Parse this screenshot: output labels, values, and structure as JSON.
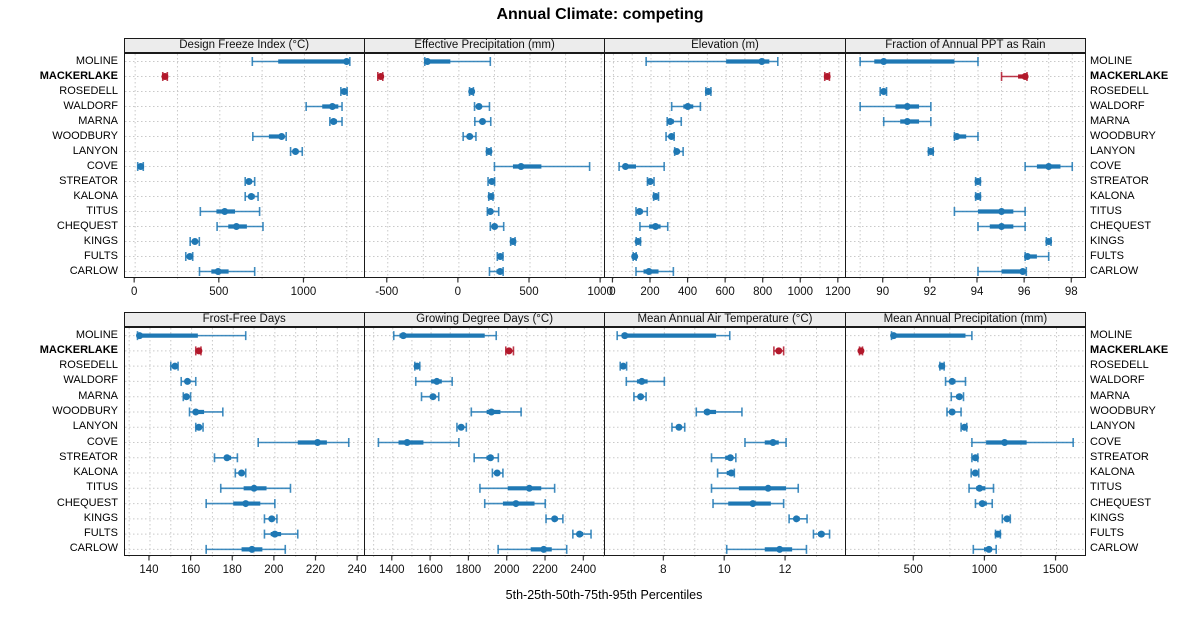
{
  "title": "Annual Climate: competing",
  "caption": "5th-25th-50th-75th-95th Percentiles",
  "percentile_labels": [
    "5th",
    "25th",
    "50th",
    "75th",
    "95th"
  ],
  "colors": {
    "series": "#1f78b4",
    "highlight": "#b2182b",
    "strip_bg": "#ececec",
    "grid": "#c9c9c9",
    "border": "#1a1a1a",
    "tick": "#333333",
    "text": "#000000"
  },
  "rows": [
    "MOLINE",
    "MACKERLAKE",
    "ROSEDELL",
    "WALDORF",
    "MARNA",
    "WOODBURY",
    "LANYON",
    "COVE",
    "STREATOR",
    "KALONA",
    "TITUS",
    "CHEQUEST",
    "KINGS",
    "FULTS",
    "CARLOW"
  ],
  "highlight_row": "MACKERLAKE",
  "chart_data": [
    {
      "type": "dotplot-percentiles",
      "panel_title": "Design Freeze Index (°C)",
      "xlim": [
        -60,
        1360
      ],
      "ticks": [
        0,
        500,
        1000
      ],
      "grid_step": 250,
      "percentiles": [
        [
          692,
          845,
          1249,
          1261,
          1268
        ],
        [
          163,
          171,
          176,
          183,
          190
        ],
        [
          1215,
          1228,
          1235,
          1243,
          1252
        ],
        [
          1010,
          1105,
          1165,
          1200,
          1222
        ],
        [
          1150,
          1162,
          1172,
          1192,
          1222
        ],
        [
          695,
          790,
          865,
          880,
          892
        ],
        [
          918,
          936,
          947,
          965,
          987
        ],
        [
          15,
          26,
          33,
          41,
          48
        ],
        [
          650,
          664,
          672,
          690,
          706
        ],
        [
          650,
          670,
          686,
          706,
          726
        ],
        [
          385,
          480,
          529,
          590,
          735
        ],
        [
          484,
          550,
          598,
          660,
          755
        ],
        [
          325,
          344,
          353,
          366,
          379
        ],
        [
          299,
          314,
          323,
          331,
          340
        ],
        [
          380,
          450,
          490,
          552,
          706
        ]
      ]
    },
    {
      "type": "dotplot-percentiles",
      "panel_title": "Effective Precipitation (mm)",
      "xlim": [
        -660,
        1030
      ],
      "ticks": [
        -500,
        0,
        500,
        1000
      ],
      "grid_step": 250,
      "percentiles": [
        [
          -240,
          -232,
          -221,
          -60,
          221
        ],
        [
          -570,
          -556,
          -549,
          -544,
          -535
        ],
        [
          75,
          84,
          90,
          96,
          102
        ],
        [
          110,
          130,
          141,
          160,
          215
        ],
        [
          112,
          150,
          166,
          181,
          224
        ],
        [
          30,
          60,
          76,
          91,
          120
        ],
        [
          195,
          205,
          212,
          218,
          226
        ],
        [
          250,
          380,
          437,
          580,
          919
        ],
        [
          205,
          221,
          232,
          241,
          251
        ],
        [
          210,
          220,
          226,
          231,
          240
        ],
        [
          200,
          212,
          221,
          236,
          280
        ],
        [
          221,
          240,
          251,
          270,
          315
        ],
        [
          364,
          374,
          381,
          386,
          395
        ],
        [
          270,
          283,
          291,
          297,
          310
        ],
        [
          215,
          264,
          290,
          300,
          311
        ]
      ]
    },
    {
      "type": "dotplot-percentiles",
      "panel_title": "Elevation (m)",
      "xlim": [
        -45,
        1235
      ],
      "ticks": [
        0,
        200,
        400,
        600,
        800,
        1000,
        1200
      ],
      "grid_step": 100,
      "percentiles": [
        [
          174,
          600,
          790,
          830,
          875
        ],
        [
          1125,
          1133,
          1138,
          1143,
          1150
        ],
        [
          492,
          500,
          505,
          511,
          519
        ],
        [
          310,
          372,
          396,
          425,
          463
        ],
        [
          286,
          296,
          302,
          322,
          361
        ],
        [
          280,
          296,
          309,
          316,
          323
        ],
        [
          326,
          331,
          337,
          351,
          371
        ],
        [
          30,
          50,
          64,
          120,
          270
        ],
        [
          181,
          190,
          196,
          206,
          216
        ],
        [
          214,
          220,
          225,
          231,
          240
        ],
        [
          120,
          130,
          139,
          156,
          180
        ],
        [
          141,
          190,
          224,
          251,
          289
        ],
        [
          121,
          126,
          131,
          136,
          144
        ],
        [
          105,
          109,
          113,
          116,
          121
        ],
        [
          120,
          160,
          189,
          240,
          319
        ]
      ]
    },
    {
      "type": "dotplot-percentiles",
      "panel_title": "Fraction of Annual PPT as Rain",
      "xlim": [
        88.4,
        98.6
      ],
      "ticks": [
        90,
        92,
        94,
        96,
        98
      ],
      "grid_step": 1,
      "percentiles": [
        [
          89,
          89.6,
          90,
          93,
          94
        ],
        [
          95,
          95.7,
          96,
          96.02,
          96.08
        ],
        [
          89.85,
          89.92,
          90,
          90.05,
          90.12
        ],
        [
          89,
          90.5,
          91,
          91.5,
          92
        ],
        [
          90,
          90.7,
          91,
          91.5,
          92
        ],
        [
          93,
          93.02,
          93.1,
          93.5,
          94
        ],
        [
          91.9,
          91.95,
          92,
          92.05,
          92.1
        ],
        [
          96,
          96.5,
          97,
          97.5,
          98
        ],
        [
          93.9,
          93.95,
          94,
          94.05,
          94.1
        ],
        [
          93.9,
          93.95,
          94,
          94.05,
          94.1
        ],
        [
          93,
          94,
          95,
          95.5,
          96
        ],
        [
          94,
          94.5,
          95,
          95.5,
          96
        ],
        [
          96.9,
          96.95,
          97,
          97.05,
          97.1
        ],
        [
          96,
          96.02,
          96.1,
          96.5,
          97
        ],
        [
          94,
          95,
          95.9,
          96,
          96.05
        ]
      ]
    },
    {
      "type": "dotplot-percentiles",
      "panel_title": "Frost-Free Days",
      "xlim": [
        128,
        243.5
      ],
      "ticks": [
        140,
        160,
        180,
        200,
        220,
        240
      ],
      "grid_step": 10,
      "percentiles": [
        [
          134,
          134.5,
          135,
          163,
          186
        ],
        [
          162,
          163,
          163.5,
          164,
          164.5
        ],
        [
          150,
          151,
          152,
          152.5,
          153.5
        ],
        [
          155,
          157,
          158,
          159.5,
          162
        ],
        [
          156,
          157,
          157.5,
          158.2,
          159.5
        ],
        [
          159,
          161,
          162,
          166,
          175
        ],
        [
          162,
          163,
          163.5,
          164.2,
          165.5
        ],
        [
          192,
          211,
          220.5,
          225,
          235.5
        ],
        [
          171,
          176,
          177,
          179,
          182
        ],
        [
          181,
          183,
          184,
          185,
          186
        ],
        [
          174,
          185,
          190,
          196,
          207.5
        ],
        [
          167,
          180,
          186,
          193,
          200
        ],
        [
          195,
          197.5,
          198.5,
          199.5,
          201
        ],
        [
          195,
          198,
          200,
          203,
          211
        ],
        [
          167,
          184,
          189,
          194,
          205
        ]
      ]
    },
    {
      "type": "dotplot-percentiles",
      "panel_title": "Growing Degree Days (°C)",
      "xlim": [
        1255,
        2510
      ],
      "ticks": [
        1400,
        1600,
        1800,
        2000,
        2200,
        2400
      ],
      "grid_step": 100,
      "percentiles": [
        [
          1405,
          1435,
          1455,
          1880,
          1940
        ],
        [
          1990,
          2000,
          2007,
          2016,
          2030
        ],
        [
          1515,
          1521,
          1527,
          1533,
          1541
        ],
        [
          1520,
          1600,
          1630,
          1656,
          1710
        ],
        [
          1550,
          1594,
          1610,
          1621,
          1640
        ],
        [
          1810,
          1890,
          1915,
          1962,
          2070
        ],
        [
          1735,
          1749,
          1757,
          1766,
          1784
        ],
        [
          1325,
          1430,
          1475,
          1560,
          1745
        ],
        [
          1825,
          1889,
          1910,
          1926,
          1951
        ],
        [
          1920,
          1936,
          1945,
          1956,
          1975
        ],
        [
          1855,
          2000,
          2113,
          2175,
          2245
        ],
        [
          1880,
          1975,
          2043,
          2140,
          2196
        ],
        [
          2200,
          2231,
          2245,
          2261,
          2288
        ],
        [
          2340,
          2364,
          2375,
          2394,
          2435
        ],
        [
          1950,
          2120,
          2188,
          2230,
          2308
        ]
      ]
    },
    {
      "type": "dotplot-percentiles",
      "panel_title": "Mean Annual Air Temperature (°C)",
      "xlim": [
        6.05,
        13.95
      ],
      "ticks": [
        8,
        10,
        12
      ],
      "grid_step": 1,
      "percentiles": [
        [
          6.45,
          6.6,
          6.7,
          9.7,
          10.15
        ],
        [
          11.6,
          11.7,
          11.76,
          11.84,
          11.92
        ],
        [
          6.55,
          6.6,
          6.65,
          6.7,
          6.76
        ],
        [
          6.75,
          7.1,
          7.26,
          7.45,
          8.0
        ],
        [
          7.0,
          7.15,
          7.22,
          7.3,
          7.4
        ],
        [
          9.05,
          9.3,
          9.41,
          9.7,
          10.55
        ],
        [
          8.25,
          8.4,
          8.48,
          8.56,
          8.67
        ],
        [
          10.65,
          11.3,
          11.57,
          11.76,
          12.0
        ],
        [
          9.55,
          10.0,
          10.17,
          10.26,
          10.35
        ],
        [
          9.75,
          10.05,
          10.2,
          10.26,
          10.3
        ],
        [
          9.55,
          10.45,
          11.41,
          12.0,
          12.4
        ],
        [
          9.6,
          10.1,
          10.91,
          11.5,
          11.92
        ],
        [
          12.1,
          12.28,
          12.34,
          12.45,
          12.69
        ],
        [
          12.9,
          13.05,
          13.16,
          13.26,
          13.43
        ],
        [
          10.05,
          11.3,
          11.79,
          12.2,
          12.67
        ]
      ]
    },
    {
      "type": "dotplot-percentiles",
      "panel_title": "Mean Annual Precipitation (mm)",
      "xlim": [
        20,
        1710
      ],
      "ticks": [
        500,
        1000,
        1500
      ],
      "grid_step": 250,
      "percentiles": [
        [
          340,
          350,
          355,
          860,
          905
        ],
        [
          115,
          120,
          125,
          130,
          136
        ],
        [
          680,
          688,
          694,
          700,
          710
        ],
        [
          720,
          750,
          766,
          790,
          860
        ],
        [
          760,
          795,
          817,
          831,
          846
        ],
        [
          730,
          755,
          766,
          786,
          829
        ],
        [
          829,
          844,
          853,
          861,
          869
        ],
        [
          905,
          1005,
          1135,
          1290,
          1617
        ],
        [
          905,
          921,
          930,
          939,
          947
        ],
        [
          900,
          924,
          929,
          936,
          953
        ],
        [
          885,
          935,
          959,
          1000,
          1057
        ],
        [
          930,
          960,
          978,
          1010,
          1048
        ],
        [
          1119,
          1140,
          1152,
          1161,
          1175
        ],
        [
          1071,
          1080,
          1088,
          1096,
          1105
        ],
        [
          915,
          990,
          1025,
          1046,
          1076
        ]
      ]
    }
  ]
}
